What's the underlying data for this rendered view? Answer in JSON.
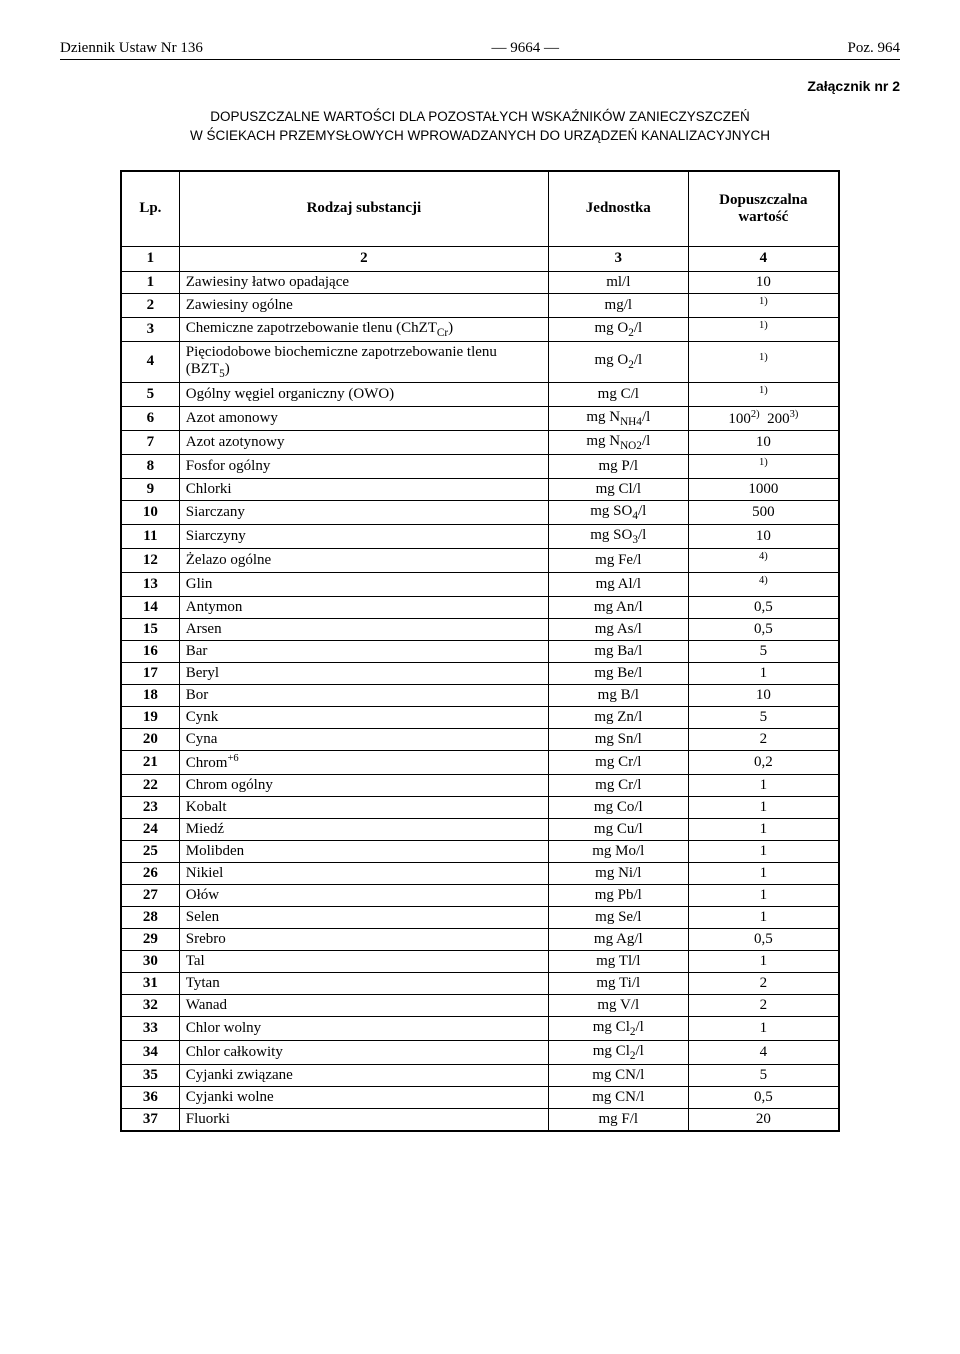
{
  "header": {
    "left": "Dziennik Ustaw Nr 136",
    "center": "—  9664  —",
    "right": "Poz. 964"
  },
  "attachment_label": "Załącznik nr 2",
  "title_line1": "DOPUSZCZALNE WARTOŚCI DLA POZOSTAŁYCH WSKAŹNIKÓW ZANIECZYSZCZEŃ",
  "title_line2": "W ŚCIEKACH PRZEMYSŁOWYCH WPROWADZANYCH DO URZĄDZEŃ KANALIZACYJNYCH",
  "columns": {
    "lp": "Lp.",
    "substance": "Rodzaj substancji",
    "unit": "Jednostka",
    "value": "Dopuszczalna wartość"
  },
  "colnums": [
    "1",
    "2",
    "3",
    "4"
  ],
  "rows": [
    {
      "lp": "1",
      "subst": "Zawiesiny łatwo opadające",
      "unit": "ml/l",
      "val": "10"
    },
    {
      "lp": "2",
      "subst": "Zawiesiny ogólne",
      "unit": "mg/l",
      "val_sup": "1)"
    },
    {
      "lp": "3",
      "subst_html": "Chemiczne zapotrzebowanie tlenu (ChZT<sub>Cr</sub>)",
      "unit_html": "mg O<sub>2</sub>/l",
      "val_sup": "1)"
    },
    {
      "lp": "4",
      "subst_html": "Pięciodobowe biochemiczne zapotrzebowanie tlenu (BZT<sub>5</sub>)",
      "unit_html": "mg O<sub>2</sub>/l",
      "val_sup": "1)"
    },
    {
      "lp": "5",
      "subst": "Ogólny węgiel organiczny (OWO)",
      "unit": "mg C/l",
      "val_sup": "1)"
    },
    {
      "lp": "6",
      "subst": "Azot amonowy",
      "unit_html": "mg N<sub>NH4</sub>/l",
      "val_html": "100<sup>2)</sup>&nbsp;&nbsp;200<sup>3)</sup>"
    },
    {
      "lp": "7",
      "subst": "Azot azotynowy",
      "unit_html": "mg N<sub>NO2</sub>/l",
      "val": "10"
    },
    {
      "lp": "8",
      "subst": "Fosfor ogólny",
      "unit": "mg P/l",
      "val_sup": "1)"
    },
    {
      "lp": "9",
      "subst": "Chlorki",
      "unit": "mg Cl/l",
      "val": "1000"
    },
    {
      "lp": "10",
      "subst": "Siarczany",
      "unit_html": "mg SO<sub>4</sub>/l",
      "val": "500"
    },
    {
      "lp": "11",
      "subst": "Siarczyny",
      "unit_html": "mg SO<sub>3</sub>/l",
      "val": "10"
    },
    {
      "lp": "12",
      "subst": "Żelazo ogólne",
      "unit": "mg Fe/l",
      "val_sup": "4)"
    },
    {
      "lp": "13",
      "subst": "Glin",
      "unit": "mg Al/l",
      "val_sup": "4)"
    },
    {
      "lp": "14",
      "subst": "Antymon",
      "unit": "mg An/l",
      "val": "0,5"
    },
    {
      "lp": "15",
      "subst": "Arsen",
      "unit": "mg As/l",
      "val": "0,5"
    },
    {
      "lp": "16",
      "subst": "Bar",
      "unit": "mg Ba/l",
      "val": "5"
    },
    {
      "lp": "17",
      "subst": "Beryl",
      "unit": "mg Be/l",
      "val": "1"
    },
    {
      "lp": "18",
      "subst": "Bor",
      "unit": "mg B/l",
      "val": "10"
    },
    {
      "lp": "19",
      "subst": "Cynk",
      "unit": "mg Zn/l",
      "val": "5"
    },
    {
      "lp": "20",
      "subst": "Cyna",
      "unit": "mg Sn/l",
      "val": "2"
    },
    {
      "lp": "21",
      "subst_html": "Chrom<sup>+6</sup>",
      "unit": "mg Cr/l",
      "val": "0,2"
    },
    {
      "lp": "22",
      "subst": "Chrom ogólny",
      "unit": "mg Cr/l",
      "val": "1"
    },
    {
      "lp": "23",
      "subst": "Kobalt",
      "unit": "mg Co/l",
      "val": "1"
    },
    {
      "lp": "24",
      "subst": "Miedź",
      "unit": "mg Cu/l",
      "val": "1"
    },
    {
      "lp": "25",
      "subst": "Molibden",
      "unit": "mg Mo/l",
      "val": "1"
    },
    {
      "lp": "26",
      "subst": "Nikiel",
      "unit": "mg Ni/l",
      "val": "1"
    },
    {
      "lp": "27",
      "subst": "Ołów",
      "unit": "mg Pb/l",
      "val": "1"
    },
    {
      "lp": "28",
      "subst": "Selen",
      "unit": "mg Se/l",
      "val": "1"
    },
    {
      "lp": "29",
      "subst": "Srebro",
      "unit": "mg Ag/l",
      "val": "0,5"
    },
    {
      "lp": "30",
      "subst": "Tal",
      "unit": "mg Tl/l",
      "val": "1"
    },
    {
      "lp": "31",
      "subst": "Tytan",
      "unit": "mg Ti/l",
      "val": "2"
    },
    {
      "lp": "32",
      "subst": "Wanad",
      "unit": "mg V/l",
      "val": "2"
    },
    {
      "lp": "33",
      "subst": "Chlor wolny",
      "unit_html": "mg Cl<sub>2</sub>/l",
      "val": "1"
    },
    {
      "lp": "34",
      "subst": "Chlor całkowity",
      "unit_html": "mg Cl<sub>2</sub>/l",
      "val": "4"
    },
    {
      "lp": "35",
      "subst": "Cyjanki związane",
      "unit": "mg CN/l",
      "val": "5"
    },
    {
      "lp": "36",
      "subst": "Cyjanki wolne",
      "unit": "mg CN/l",
      "val": "0,5"
    },
    {
      "lp": "37",
      "subst": "Fluorki",
      "unit": "mg F/l",
      "val": "20"
    }
  ]
}
